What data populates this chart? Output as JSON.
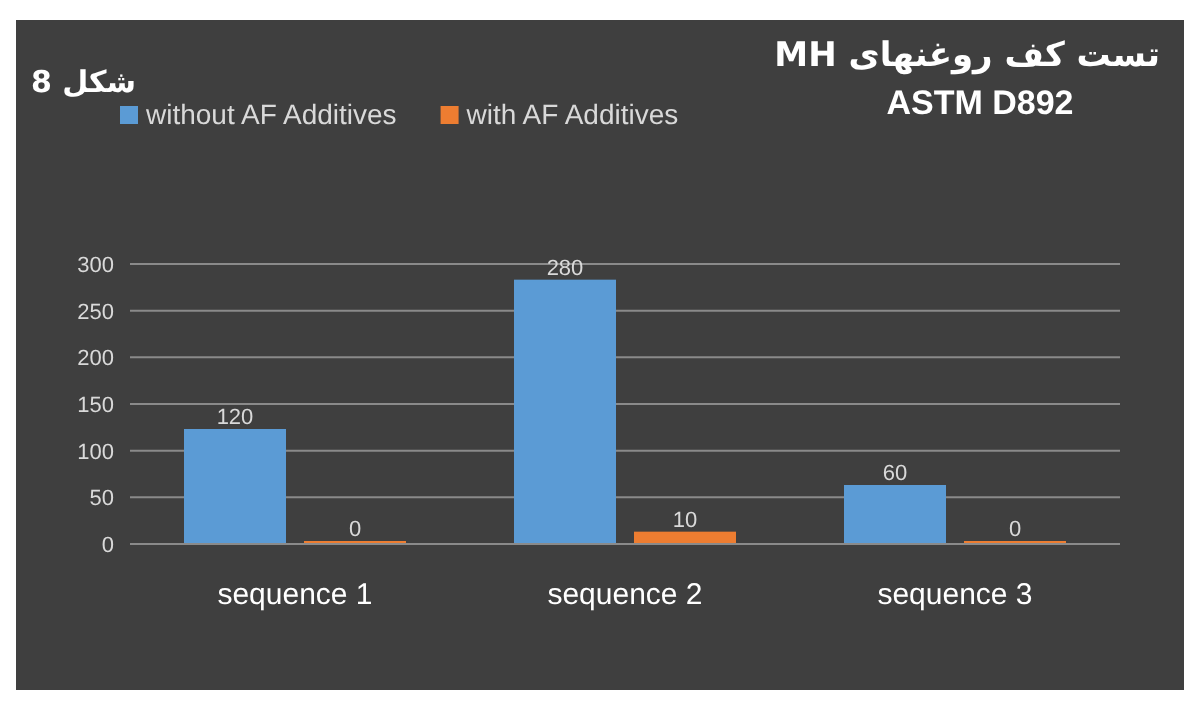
{
  "chart_data": {
    "type": "bar",
    "title": "تست کف روغنهای MH",
    "subtitle": "ASTM D892",
    "annotations": [
      "شکل 8"
    ],
    "categories": [
      "sequence 1",
      "sequence 2",
      "sequence 3"
    ],
    "series": [
      {
        "name": "without AF Additives",
        "color": "#5b9bd5",
        "values": [
          120,
          280,
          60
        ]
      },
      {
        "name": "with AF Additives",
        "color": "#ed7d31",
        "values": [
          0,
          10,
          0
        ]
      }
    ],
    "ylim": [
      0,
      300
    ],
    "yticks": [
      0,
      50,
      100,
      150,
      200,
      250,
      300
    ],
    "grid": "y",
    "legend": "top left",
    "data_labels": true
  }
}
